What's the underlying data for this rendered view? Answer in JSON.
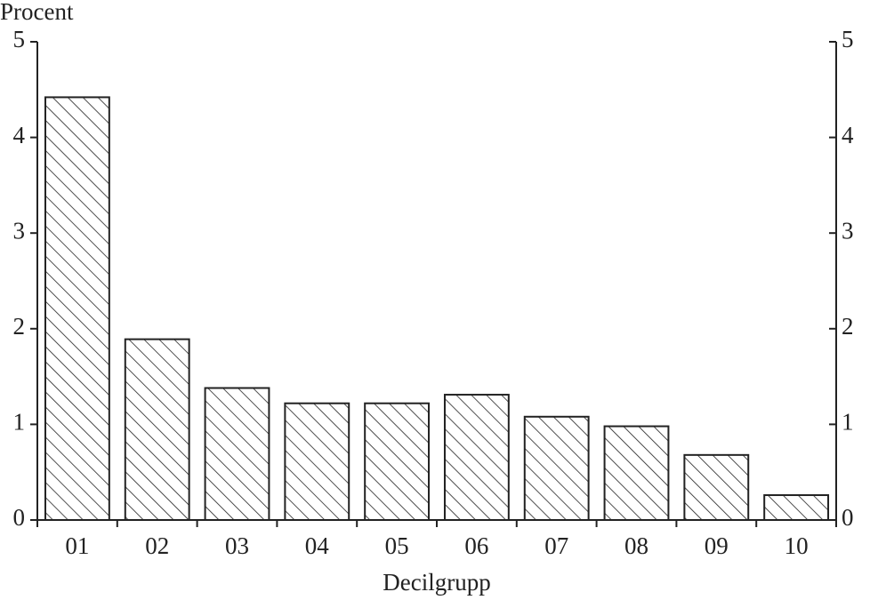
{
  "chart_data": {
    "type": "bar",
    "y_label": "Procent",
    "x_label": "Decilgrupp",
    "categories": [
      "01",
      "02",
      "03",
      "04",
      "05",
      "06",
      "07",
      "08",
      "09",
      "10"
    ],
    "values": [
      4.42,
      1.89,
      1.38,
      1.22,
      1.22,
      1.31,
      1.08,
      0.98,
      0.68,
      0.26
    ],
    "color": "#222222",
    "hatch": true,
    "ylim": [
      0,
      5
    ],
    "yticks": [
      0,
      1,
      2,
      3,
      4,
      5
    ],
    "y2lim": [
      0,
      5
    ],
    "y2ticks": [
      0,
      1,
      2,
      3,
      4,
      5
    ],
    "grid": false
  }
}
